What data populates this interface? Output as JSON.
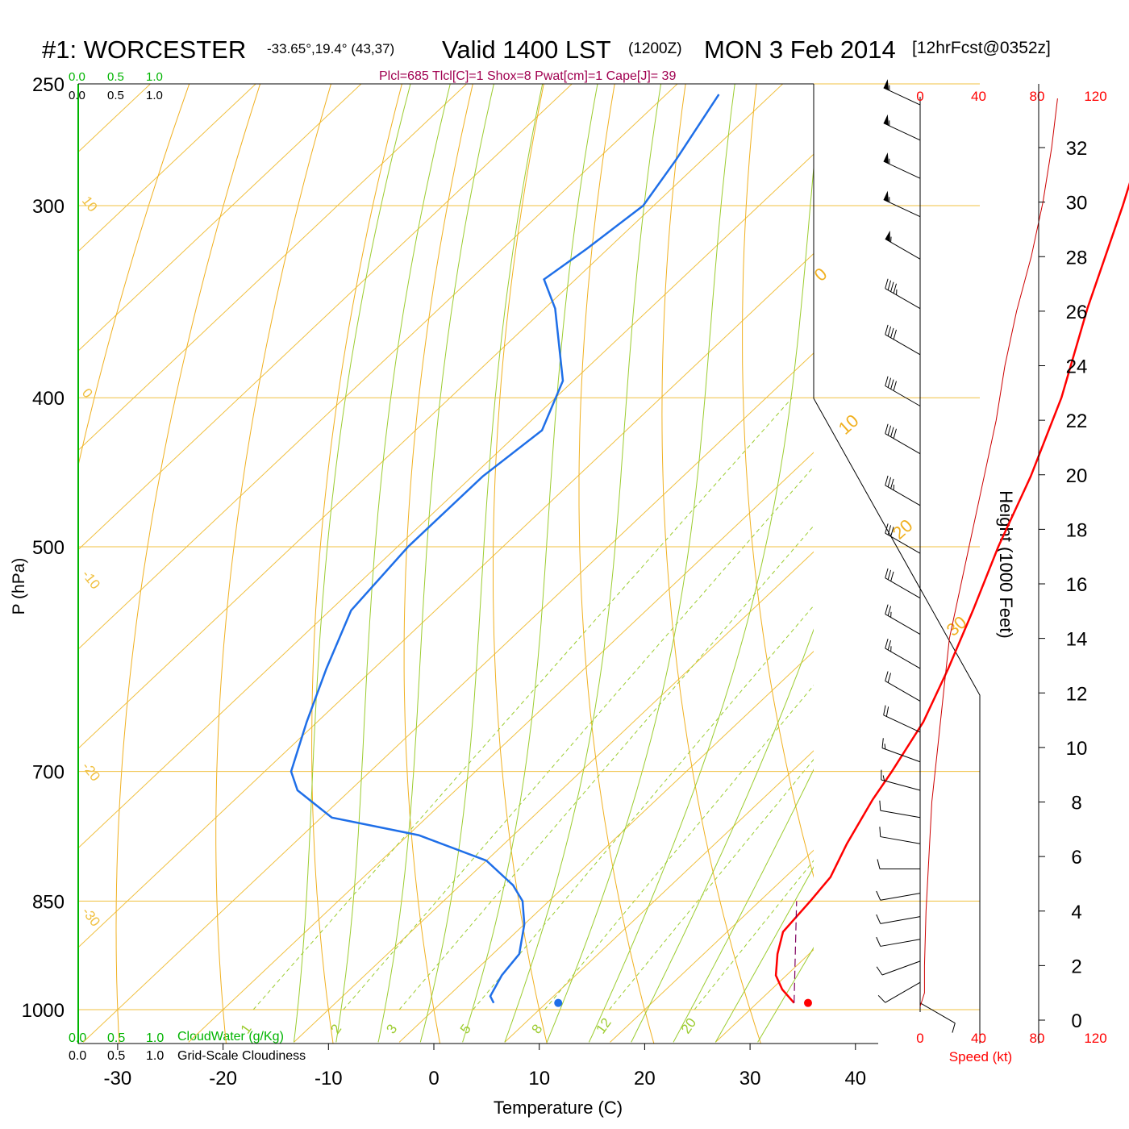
{
  "header": {
    "station": "#1: WORCESTER",
    "location": "-33.65°,19.4° (43,37)",
    "valid": "Valid 1400 LST",
    "utc": "(1200Z)",
    "date": "MON 3 Feb 2014",
    "forecast": "[12hrFcst@0352z]"
  },
  "indices": "Plcl=685 Tlcl[C]=1 Shox=8 Pwat[cm]=1 Cape[J]= 39",
  "top_scale": {
    "cloudwater_ticks": [
      "0.0",
      "0.5",
      "1.0"
    ],
    "cloudiness_ticks": [
      "0.0",
      "0.5",
      "1.0"
    ]
  },
  "bottom_scale": {
    "cloudwater_ticks": [
      "0.0",
      "0.5",
      "1.0"
    ],
    "cloudwater_label": "CloudWater (g/Kg)",
    "cloudiness_ticks": [
      "0.0",
      "0.5",
      "1.0"
    ],
    "cloudiness_label": "Grid-Scale Cloudiness"
  },
  "colors": {
    "temperature": "#ff0000",
    "dewpoint": "#1f6fe8",
    "parcel": "#800060",
    "isotherm": "#f0c040",
    "dry_adiabat": "#f0b020",
    "moist_adiabat": "#9ccc30",
    "mixing_ratio": "#9ccc30",
    "cloud_water": "#00b400",
    "speed_profile": "#cc0000"
  },
  "chart_data": {
    "type": "skew-t",
    "xlabel": "Temperature (C)",
    "ylabel": "P (hPa)",
    "y2label": "Height (1000 Feet)",
    "xlim": [
      -30,
      45
    ],
    "ylim_hpa": [
      1000,
      250
    ],
    "x_ticks": [
      -30,
      -20,
      -10,
      0,
      10,
      20,
      30,
      40
    ],
    "pressure_ticks": [
      1000,
      850,
      700,
      500,
      400,
      300,
      250
    ],
    "height_ticks_kft": [
      0,
      2,
      4,
      6,
      8,
      10,
      12,
      14,
      16,
      18,
      20,
      22,
      24,
      26,
      28,
      30,
      32
    ],
    "isotherm_labels": [
      "10",
      "0",
      "-10",
      "-20",
      "-30"
    ],
    "right_isotherm_labels": [
      "0",
      "10",
      "20",
      "30"
    ],
    "mixing_ratio_labels": [
      "1",
      "2",
      "3",
      "5",
      "8",
      "12",
      "20"
    ],
    "mixing_ratios_gkg": [
      1,
      2,
      3,
      5,
      8,
      12,
      20
    ],
    "series": [
      {
        "name": "Temperature",
        "points": [
          [
            990,
            33.5
          ],
          [
            970,
            31
          ],
          [
            950,
            29
          ],
          [
            920,
            27
          ],
          [
            890,
            25.3
          ],
          [
            850,
            24.8
          ],
          [
            820,
            24.3
          ],
          [
            780,
            22.5
          ],
          [
            730,
            20.5
          ],
          [
            700,
            19.5
          ],
          [
            650,
            17.5
          ],
          [
            600,
            14.5
          ],
          [
            550,
            11
          ],
          [
            500,
            7
          ],
          [
            450,
            3
          ],
          [
            400,
            -2
          ],
          [
            350,
            -8.5
          ],
          [
            300,
            -15.5
          ],
          [
            270,
            -20.5
          ],
          [
            254,
            -23.5
          ]
        ]
      },
      {
        "name": "Dew Point",
        "points": [
          [
            990,
            5
          ],
          [
            980,
            4
          ],
          [
            950,
            3
          ],
          [
            920,
            2.5
          ],
          [
            880,
            0
          ],
          [
            850,
            -2.5
          ],
          [
            830,
            -5
          ],
          [
            800,
            -10
          ],
          [
            770,
            -19
          ],
          [
            750,
            -29
          ],
          [
            720,
            -35
          ],
          [
            700,
            -37.5
          ],
          [
            650,
            -41
          ],
          [
            600,
            -44.5
          ],
          [
            550,
            -48
          ],
          [
            500,
            -49
          ],
          [
            450,
            -49
          ],
          [
            420,
            -48
          ],
          [
            390,
            -51
          ],
          [
            350,
            -59
          ],
          [
            335,
            -63
          ],
          [
            320,
            -62
          ],
          [
            300,
            -61
          ],
          [
            280,
            -62.5
          ],
          [
            254,
            -65
          ]
        ]
      },
      {
        "name": "Parcel",
        "points": [
          [
            990,
            33.5
          ],
          [
            850,
            23.5
          ]
        ]
      }
    ],
    "surface_markers": {
      "temperature": 35.5,
      "dewpoint": 11.8
    },
    "wind_barbs": [
      {
        "p": 990,
        "dir": 120,
        "kt": 10
      },
      {
        "p": 960,
        "dir": 240,
        "kt": 10
      },
      {
        "p": 930,
        "dir": 250,
        "kt": 10
      },
      {
        "p": 900,
        "dir": 260,
        "kt": 10
      },
      {
        "p": 870,
        "dir": 260,
        "kt": 10
      },
      {
        "p": 840,
        "dir": 260,
        "kt": 10
      },
      {
        "p": 810,
        "dir": 270,
        "kt": 10
      },
      {
        "p": 780,
        "dir": 280,
        "kt": 10
      },
      {
        "p": 750,
        "dir": 280,
        "kt": 10
      },
      {
        "p": 720,
        "dir": 285,
        "kt": 15
      },
      {
        "p": 690,
        "dir": 290,
        "kt": 15
      },
      {
        "p": 660,
        "dir": 295,
        "kt": 20
      },
      {
        "p": 630,
        "dir": 300,
        "kt": 20
      },
      {
        "p": 600,
        "dir": 300,
        "kt": 25
      },
      {
        "p": 570,
        "dir": 300,
        "kt": 25
      },
      {
        "p": 540,
        "dir": 300,
        "kt": 30
      },
      {
        "p": 505,
        "dir": 300,
        "kt": 30
      },
      {
        "p": 470,
        "dir": 300,
        "kt": 35
      },
      {
        "p": 435,
        "dir": 300,
        "kt": 40
      },
      {
        "p": 405,
        "dir": 300,
        "kt": 40
      },
      {
        "p": 375,
        "dir": 300,
        "kt": 40
      },
      {
        "p": 350,
        "dir": 300,
        "kt": 45
      },
      {
        "p": 325,
        "dir": 300,
        "kt": 55
      },
      {
        "p": 305,
        "dir": 295,
        "kt": 55
      },
      {
        "p": 288,
        "dir": 295,
        "kt": 55
      },
      {
        "p": 272,
        "dir": 295,
        "kt": 55
      },
      {
        "p": 258,
        "dir": 295,
        "kt": 55
      }
    ],
    "wind_speed": {
      "xlabel": "Speed (kt)",
      "ticks": [
        0,
        40,
        80,
        120
      ],
      "profile": [
        [
          0.5,
          0
        ],
        [
          1,
          3
        ],
        [
          2,
          3
        ],
        [
          4,
          4
        ],
        [
          6,
          6
        ],
        [
          8,
          8
        ],
        [
          10,
          12
        ],
        [
          12,
          16
        ],
        [
          14,
          20
        ],
        [
          16,
          28
        ],
        [
          18,
          36
        ],
        [
          20,
          44
        ],
        [
          22,
          52
        ],
        [
          24,
          58
        ],
        [
          26,
          66
        ],
        [
          28,
          76
        ],
        [
          30,
          84
        ],
        [
          32,
          90
        ],
        [
          33.8,
          94
        ]
      ]
    }
  }
}
